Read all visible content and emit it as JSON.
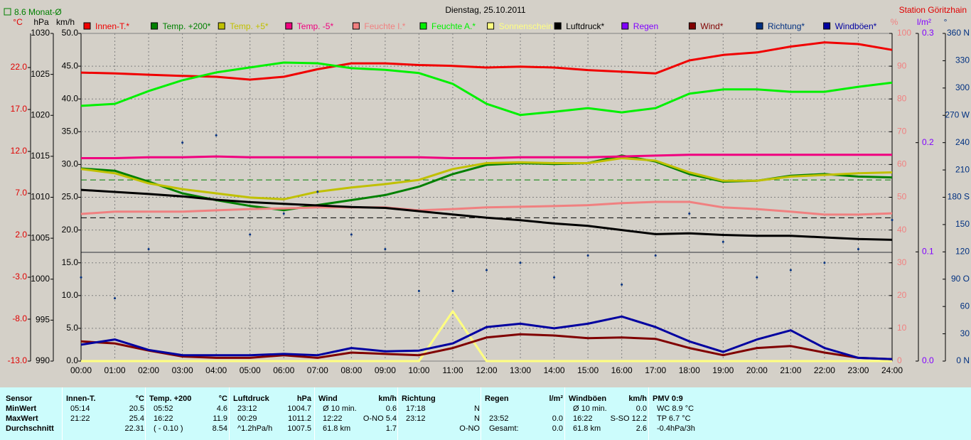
{
  "header": {
    "monthly_avg": {
      "value": 8.6,
      "label": "8.6 Monat-Ø"
    },
    "station": "Station Göritzhain"
  },
  "chart_data": {
    "type": "line",
    "title": "Dienstag, 25.10.2011",
    "x": [
      0,
      1,
      2,
      3,
      4,
      5,
      6,
      7,
      8,
      9,
      10,
      11,
      12,
      13,
      14,
      15,
      16,
      17,
      18,
      19,
      20,
      21,
      22,
      23,
      24
    ],
    "xlim": [
      0,
      24
    ],
    "xticks": [
      {
        "value": 0,
        "label": "00:00"
      },
      {
        "value": 1,
        "label": "01:00"
      },
      {
        "value": 2,
        "label": "02:00"
      },
      {
        "value": 3,
        "label": "03:00"
      },
      {
        "value": 4,
        "label": "04:00"
      },
      {
        "value": 5,
        "label": "05:00"
      },
      {
        "value": 6,
        "label": "06:00"
      },
      {
        "value": 7,
        "label": "07:00"
      },
      {
        "value": 8,
        "label": "08:00"
      },
      {
        "value": 9,
        "label": "09:00"
      },
      {
        "value": 10,
        "label": "10:00"
      },
      {
        "value": 11,
        "label": "11:00"
      },
      {
        "value": 12,
        "label": "12:00"
      },
      {
        "value": 13,
        "label": "13:00"
      },
      {
        "value": 14,
        "label": "14:00"
      },
      {
        "value": 15,
        "label": "15:00"
      },
      {
        "value": 16,
        "label": "16:00"
      },
      {
        "value": 17,
        "label": "17:00"
      },
      {
        "value": 18,
        "label": "18:00"
      },
      {
        "value": 19,
        "label": "19:00"
      },
      {
        "value": 20,
        "label": "20:00"
      },
      {
        "value": 21,
        "label": "21:00"
      },
      {
        "value": 22,
        "label": "22:00"
      },
      {
        "value": 23,
        "label": "23:00"
      },
      {
        "value": 24,
        "label": "24:00"
      }
    ],
    "grid": true,
    "grid_axis": "kmh",
    "axes": {
      "C": {
        "label": "°C",
        "color": "#e00000",
        "ylim": [
          -13,
          26.07
        ],
        "yticks": [
          {
            "value": -13,
            "label": "-13.0"
          },
          {
            "value": -8,
            "label": "-8.0"
          },
          {
            "value": -3,
            "label": "-3.0"
          },
          {
            "value": 2,
            "label": "2.0"
          },
          {
            "value": 7,
            "label": "7.0"
          },
          {
            "value": 12,
            "label": "12.0"
          },
          {
            "value": 17,
            "label": "17.0"
          },
          {
            "value": 22,
            "label": "22.0"
          }
        ]
      },
      "hPa": {
        "label": "hPa",
        "color": "#000000",
        "ylim": [
          990,
          1030
        ],
        "yticks": [
          990,
          995,
          1000,
          1005,
          1010,
          1015,
          1020,
          1025,
          1030
        ]
      },
      "kmh": {
        "label": "km/h",
        "color": "#000000",
        "ylim": [
          0,
          50
        ],
        "yticks": [
          {
            "value": 0,
            "label": "0.0"
          },
          {
            "value": 5,
            "label": "5.0"
          },
          {
            "value": 10,
            "label": "10.0"
          },
          {
            "value": 15,
            "label": "15.0"
          },
          {
            "value": 20,
            "label": "20.0"
          },
          {
            "value": 25,
            "label": "25.0"
          },
          {
            "value": 30,
            "label": "30.0"
          },
          {
            "value": 35,
            "label": "35.0"
          },
          {
            "value": 40,
            "label": "40.0"
          },
          {
            "value": 45,
            "label": "45.0"
          },
          {
            "value": 50,
            "label": "50.0"
          }
        ]
      },
      "pct": {
        "label": "%",
        "color": "#f08080",
        "ylim": [
          0,
          100
        ],
        "yticks": [
          0,
          10,
          20,
          30,
          40,
          50,
          60,
          70,
          80,
          90,
          100
        ]
      },
      "lm2": {
        "label": "l/m²",
        "color": "#8000ff",
        "ylim": [
          0,
          0.3
        ],
        "yticks": [
          {
            "value": 0,
            "label": "0.0"
          },
          0.1,
          0.2,
          0.3
        ]
      },
      "deg": {
        "label": "°",
        "color": "#003080",
        "ylim": [
          0,
          360
        ],
        "yticks": [
          {
            "value": 0,
            "label": "0 N"
          },
          30,
          60,
          {
            "value": 90,
            "label": "90 O"
          },
          120,
          150,
          {
            "value": 180,
            "label": "180 S"
          },
          210,
          240,
          {
            "value": 270,
            "label": "270 W"
          },
          300,
          330,
          {
            "value": 360,
            "label": "360 N"
          }
        ]
      }
    },
    "series": [
      {
        "name": "Innen-T.*",
        "color": "#f00000",
        "axis": "C",
        "values": [
          21.4,
          21.3,
          21.15,
          21.0,
          20.9,
          20.56,
          20.9,
          21.8,
          22.5,
          22.5,
          22.3,
          22.2,
          22.0,
          22.1,
          22.0,
          21.7,
          21.5,
          21.3,
          22.85,
          23.5,
          23.8,
          24.5,
          25.0,
          24.8,
          24.1
        ]
      },
      {
        "name": "Temp. +200*",
        "color": "#008000",
        "axis": "C",
        "values": [
          9.97,
          9.7,
          8.4,
          7.0,
          6.2,
          5.5,
          5.0,
          5.6,
          6.2,
          6.8,
          7.8,
          9.3,
          10.4,
          10.6,
          10.5,
          10.6,
          11.5,
          10.8,
          9.3,
          8.4,
          8.5,
          9.1,
          9.3,
          9.0,
          8.9
        ]
      },
      {
        "name": "Temp. +5*",
        "color": "#c0c000",
        "axis": "C",
        "values": [
          9.9,
          9.4,
          8.2,
          7.5,
          7.0,
          6.5,
          6.3,
          7.2,
          7.7,
          8.1,
          8.6,
          9.9,
          10.6,
          10.7,
          10.6,
          10.6,
          11.2,
          10.9,
          9.5,
          8.5,
          8.5,
          9.0,
          9.2,
          9.4,
          9.5
        ]
      },
      {
        "name": "Temp. -5*",
        "color": "#f0007f",
        "axis": "C",
        "values": [
          11.2,
          11.2,
          11.3,
          11.3,
          11.4,
          11.3,
          11.3,
          11.3,
          11.3,
          11.3,
          11.3,
          11.2,
          11.2,
          11.3,
          11.3,
          11.3,
          11.4,
          11.5,
          11.6,
          11.6,
          11.6,
          11.6,
          11.6,
          11.6,
          11.6
        ]
      },
      {
        "name": "Feuchte I.*",
        "color": "#f08080",
        "axis": "pct",
        "values": [
          44.9,
          45.6,
          45.6,
          45.6,
          46.0,
          46.4,
          46.6,
          46.9,
          46.9,
          46.9,
          46.0,
          46.4,
          46.9,
          47.1,
          47.3,
          47.6,
          48.2,
          48.6,
          48.6,
          46.9,
          46.4,
          45.6,
          44.7,
          44.7,
          45.1
        ]
      },
      {
        "name": "Feuchte A.*",
        "color": "#00f000",
        "axis": "pct",
        "values": [
          77.9,
          78.5,
          82.4,
          85.7,
          88.1,
          89.6,
          91.1,
          90.9,
          89.4,
          88.9,
          87.9,
          84.6,
          78.5,
          75.1,
          76.1,
          77.2,
          75.9,
          77.2,
          81.6,
          82.9,
          82.9,
          82.2,
          82.2,
          83.7,
          85.0
        ]
      },
      {
        "name": "Sonnenschein",
        "color": "#ffff80",
        "axis": "pct",
        "values": [
          0,
          0,
          0,
          0,
          0,
          0,
          0,
          0,
          0,
          0,
          0,
          15.2,
          0,
          0,
          0,
          0,
          0,
          0,
          0,
          0,
          0,
          0,
          0,
          0,
          0
        ]
      },
      {
        "name": "Luftdruck*",
        "color": "#000000",
        "axis": "hPa",
        "values": [
          1010.9,
          1010.65,
          1010.4,
          1010.1,
          1009.7,
          1009.4,
          1009.2,
          1009.0,
          1008.8,
          1008.7,
          1008.3,
          1007.9,
          1007.5,
          1007.2,
          1006.8,
          1006.5,
          1006.0,
          1005.5,
          1005.6,
          1005.4,
          1005.3,
          1005.3,
          1005.1,
          1004.9,
          1004.8
        ]
      },
      {
        "name": "Regen",
        "color": "#8000ff",
        "axis": "lm2"
      },
      {
        "name": "Wind*",
        "color": "#800000",
        "axis": "kmh",
        "values": [
          3.0,
          2.7,
          1.6,
          0.7,
          0.5,
          0.5,
          0.9,
          0.5,
          1.3,
          1.1,
          0.9,
          2.0,
          3.6,
          4.1,
          3.9,
          3.5,
          3.6,
          3.4,
          2.0,
          0.9,
          2.0,
          2.3,
          1.3,
          0.5,
          0.3
        ]
      },
      {
        "name": "Richtung*",
        "color": "#003080",
        "axis": "deg",
        "style": "dots",
        "values": [
          92,
          69,
          123,
          240,
          248,
          139,
          162,
          186,
          139,
          123,
          77,
          77,
          100,
          108,
          92,
          116,
          84,
          116,
          162,
          131,
          92,
          100,
          108,
          123,
          155
        ]
      },
      {
        "name": "Windböen*",
        "color": "#0000a0",
        "axis": "kmh",
        "values": [
          2.5,
          3.3,
          1.7,
          0.9,
          0.9,
          0.9,
          1.1,
          0.9,
          2.0,
          1.5,
          1.6,
          2.7,
          5.2,
          5.7,
          5.0,
          5.7,
          6.8,
          5.2,
          3.0,
          1.4,
          3.3,
          4.7,
          2.0,
          0.5,
          0.3
        ]
      }
    ]
  },
  "table": {
    "label_column": [
      "Sensor",
      "MinWert",
      "MaxWert",
      "Durchschnitt"
    ],
    "groups": [
      {
        "name": "Innen-T.",
        "unit": "°C",
        "rows": [
          [
            "05:14",
            "20.5"
          ],
          [
            "21:22",
            "25.4"
          ],
          [
            null,
            "22.31"
          ]
        ]
      },
      {
        "name": "Temp. +200",
        "unit": "°C",
        "rows": [
          [
            "05:52",
            "4.6"
          ],
          [
            "16:22",
            "11.9"
          ],
          [
            "( - 0.10 )",
            "8.54"
          ]
        ]
      },
      {
        "name": "Luftdruck",
        "unit": "hPa",
        "rows": [
          [
            "23:12",
            "1004.7"
          ],
          [
            "00:29",
            "1011.2"
          ],
          [
            "^1.2hPa/h",
            "1007.5"
          ]
        ]
      },
      {
        "name": "Wind",
        "unit": "km/h",
        "rows": [
          [
            "Ø 10 min.",
            "0.6"
          ],
          [
            "12:22",
            "O-NO 5.4"
          ],
          [
            "61.8 km",
            "1.7"
          ]
        ]
      },
      {
        "name": "Richtung",
        "unit": null,
        "rows": [
          [
            "17:18",
            "N"
          ],
          [
            "23:12",
            "N"
          ],
          [
            null,
            "O-NO"
          ]
        ]
      },
      {
        "name": "Regen",
        "unit": "l/m²",
        "rows": [
          [
            null,
            null
          ],
          [
            "23:52",
            "0.0"
          ],
          [
            "Gesamt:",
            "0.0"
          ]
        ]
      },
      {
        "name": "Windböen",
        "unit": "km/h",
        "rows": [
          [
            "Ø 10 min.",
            "0.0"
          ],
          [
            "16:22",
            "S-SO 12.2"
          ],
          [
            "61.8 km",
            "2.6"
          ]
        ]
      },
      {
        "name": "PMV 0:9",
        "unit": null,
        "rows": [
          [
            "WC 8.9 °C",
            null
          ],
          [
            "TP 6.7 °C",
            null
          ],
          [
            "-0.4hPa/3h",
            null
          ]
        ]
      }
    ]
  }
}
